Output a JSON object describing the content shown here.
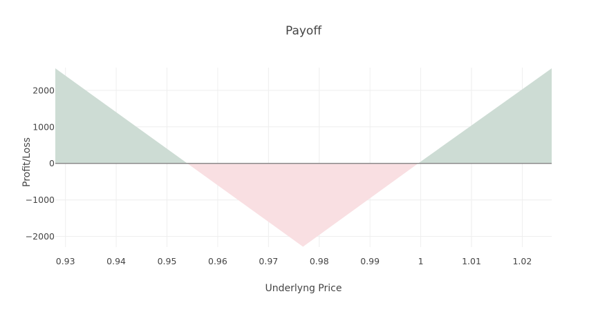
{
  "chart_data": {
    "type": "area",
    "title": "Payoff",
    "xlabel": "Underlyng Price",
    "ylabel": "Profit/Loss",
    "xlim": [
      0.928,
      1.0258
    ],
    "ylim": [
      -2290,
      2620
    ],
    "xticks": [
      0.93,
      0.94,
      0.95,
      0.96,
      0.97,
      0.98,
      0.99,
      1.0,
      1.01,
      1.02
    ],
    "xtick_labels": [
      "0.93",
      "0.94",
      "0.95",
      "0.96",
      "0.97",
      "0.98",
      "0.99",
      "1",
      "1.01",
      "1.02"
    ],
    "yticks": [
      -2000,
      -1000,
      0,
      1000,
      2000
    ],
    "ytick_labels": [
      "−2000",
      "−1000",
      "0",
      "1000",
      "2000"
    ],
    "grid": true,
    "series": [
      {
        "x": [
          0.928,
          0.954,
          0.9768,
          0.9995,
          1.0258
        ],
        "y": [
          2600,
          0,
          -2280,
          0,
          2600
        ]
      }
    ],
    "colors": {
      "profit_fill": "#cddcd4",
      "loss_fill": "#f9dfe2",
      "zero_line": "#8a8a8a",
      "grid": "#eeeeee",
      "text": "#444444"
    }
  }
}
